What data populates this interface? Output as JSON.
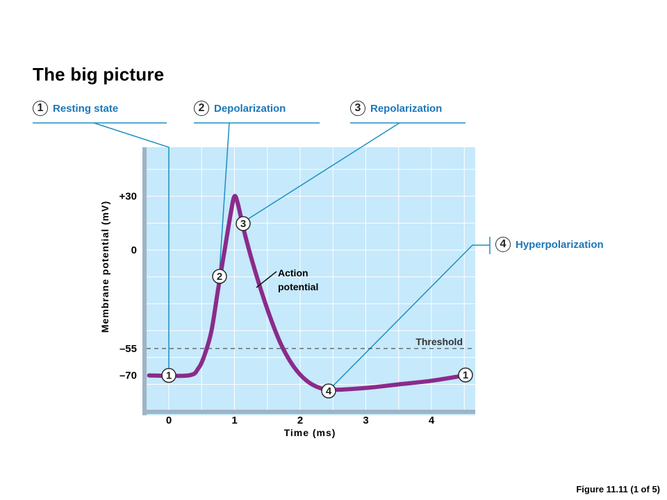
{
  "title": "The big picture",
  "stages": [
    {
      "num": "1",
      "label": "Resting state"
    },
    {
      "num": "2",
      "label": "Depolarization"
    },
    {
      "num": "3",
      "label": "Repolarization"
    },
    {
      "num": "4",
      "label": "Hyperpolarization"
    }
  ],
  "figure_caption": "Figure 11.11 (1 of 5)",
  "colors": {
    "plot_bg": "#c6e9fb",
    "curve": "#8a2b8b",
    "leader_line": "#1b8fc2",
    "label_text": "#1b77b8"
  },
  "chart_data": {
    "type": "line",
    "xlabel": "Time (ms)",
    "ylabel": "Membrane potential (mV)",
    "x_ticks": [
      "0",
      "1",
      "2",
      "3",
      "4"
    ],
    "y_ticks": [
      "+30",
      "0",
      "–55",
      "–70"
    ],
    "y_tick_values": [
      30,
      0,
      -55,
      -70
    ],
    "xlim": [
      -0.4,
      4.6
    ],
    "ylim": [
      -90,
      50
    ],
    "grid": true,
    "series": [
      {
        "name": "Action potential",
        "points": [
          [
            -0.3,
            -70
          ],
          [
            0.3,
            -70
          ],
          [
            0.45,
            -66
          ],
          [
            0.55,
            -58
          ],
          [
            0.65,
            -45
          ],
          [
            0.75,
            -22
          ],
          [
            0.85,
            0
          ],
          [
            0.95,
            22
          ],
          [
            1.0,
            30
          ],
          [
            1.05,
            26
          ],
          [
            1.15,
            10
          ],
          [
            1.3,
            -10
          ],
          [
            1.5,
            -33
          ],
          [
            1.7,
            -52
          ],
          [
            1.9,
            -65
          ],
          [
            2.1,
            -73
          ],
          [
            2.3,
            -77
          ],
          [
            2.5,
            -78
          ],
          [
            3.0,
            -77
          ],
          [
            3.5,
            -75
          ],
          [
            4.0,
            -73
          ],
          [
            4.5,
            -70
          ]
        ]
      }
    ],
    "threshold": {
      "value": -55,
      "label": "Threshold"
    },
    "markers": [
      {
        "label": "1",
        "x": 0.0,
        "y": -70
      },
      {
        "label": "2",
        "x": 0.8,
        "y": -15
      },
      {
        "label": "3",
        "x": 1.15,
        "y": 10
      },
      {
        "label": "4",
        "x": 2.4,
        "y": -78
      },
      {
        "label": "1",
        "x": 4.45,
        "y": -70
      }
    ],
    "annotations": [
      {
        "text_line1": "Action",
        "text_line2": "potential"
      }
    ]
  }
}
